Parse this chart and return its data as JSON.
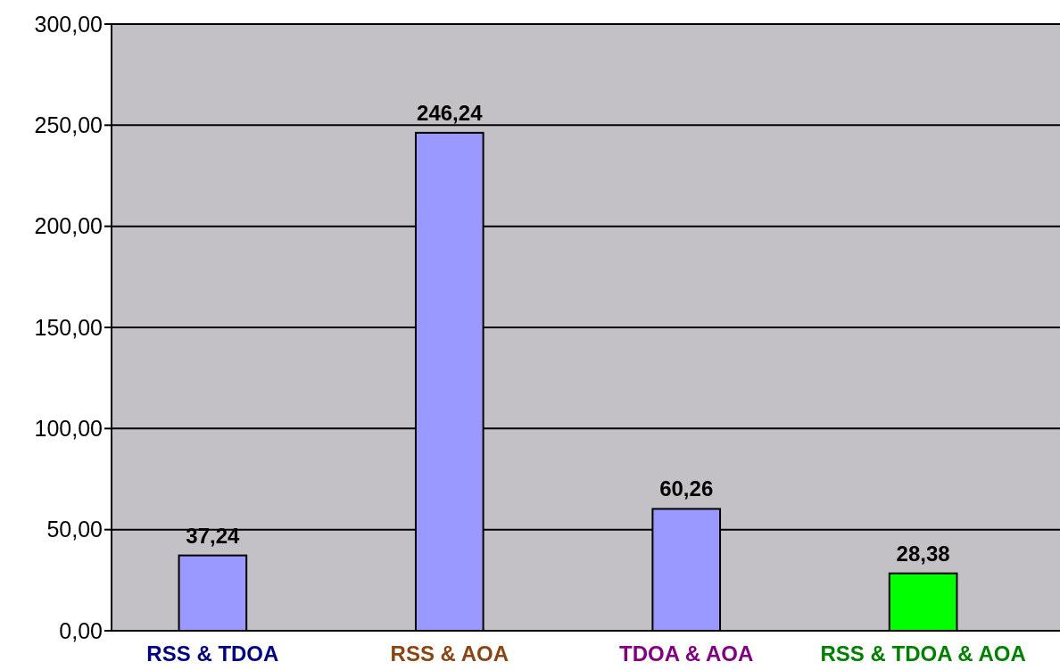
{
  "chart_data": {
    "type": "bar",
    "categories": [
      "RSS & TDOA",
      "RSS & AOA",
      "TDOA & AOA",
      "RSS & TDOA & AOA"
    ],
    "values": [
      37.24,
      246.24,
      60.26,
      28.38
    ],
    "colors": [
      "#9999ff",
      "#9999ff",
      "#9999ff",
      "#00ff00"
    ],
    "value_labels": [
      "37,24",
      "246,24",
      "60,26",
      "28,38"
    ],
    "ylim": [
      0,
      300
    ],
    "yticks": [
      {
        "value": 0,
        "label": "0,00"
      },
      {
        "value": 50,
        "label": "50,00"
      },
      {
        "value": 100,
        "label": "100,00"
      },
      {
        "value": 150,
        "label": "150,00"
      },
      {
        "value": 200,
        "label": "200,00"
      },
      {
        "value": 250,
        "label": "250,00"
      },
      {
        "value": 300,
        "label": "300,00"
      }
    ],
    "grid": "y"
  }
}
